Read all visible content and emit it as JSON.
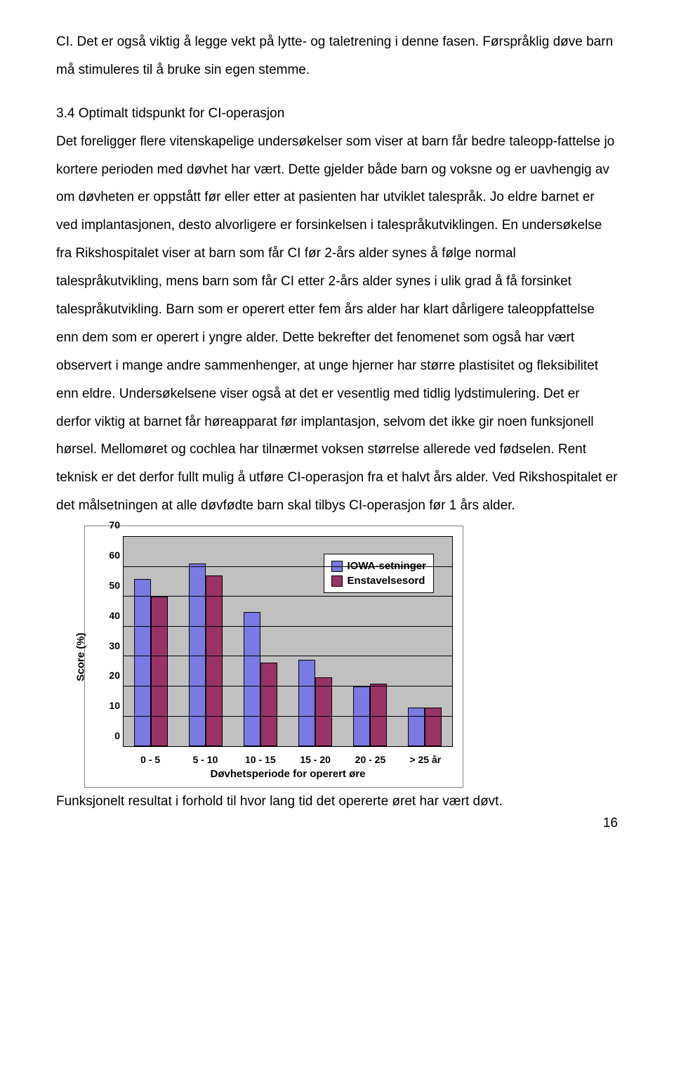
{
  "text": {
    "p1": "CI. Det er også viktig å legge vekt på lytte- og taletrening i denne fasen. Førspråklig døve barn må stimuleres til å bruke sin egen stemme.",
    "section_title": "3.4 Optimalt tidspunkt for CI-operasjon",
    "p2": "Det foreligger flere vitenskapelige undersøkelser som viser at barn får bedre taleopp-fattelse jo kortere perioden med døvhet har vært. Dette gjelder både barn og voksne og er uavhengig av om døvheten er oppstått før eller etter at pasienten har utviklet talespråk. Jo eldre barnet er ved implantasjonen, desto alvorligere er forsinkelsen i talespråkutviklingen. En undersøkelse fra Rikshospitalet viser at barn som får CI før 2-års alder synes å følge normal talespråkutvikling, mens barn som får CI etter 2-års alder synes i ulik grad å få forsinket talespråkutvikling. Barn som er operert etter fem års alder har klart dårligere taleoppfattelse enn dem som er operert i yngre alder. Dette bekrefter det fenomenet som også har vært observert i mange andre sammenhenger, at unge hjerner har større plastisitet og fleksibilitet enn eldre. Undersøkelsene viser også at det er vesentlig med tidlig lydstimulering. Det er derfor viktig at barnet får høreapparat før implantasjon, selvom det ikke gir noen funksjonell hørsel. Mellomøret og cochlea har tilnærmet voksen størrelse allerede ved fødselen. Rent teknisk er det derfor fullt mulig å utføre CI-operasjon fra et halvt års alder. Ved Rikshospitalet er det målsetningen at alle døvfødte barn skal tilbys CI-operasjon før 1 års alder.",
    "caption": "Funksjonelt resultat i forhold til hvor lang tid det opererte øret har vært døvt.",
    "pagenum": "16"
  },
  "chart": {
    "type": "bar",
    "categories": [
      "0 - 5",
      "5 - 10",
      "10 - 15",
      "15 - 20",
      "20 - 25",
      "> 25 år"
    ],
    "series": [
      {
        "name": "IOWA-setninger",
        "color": "#7b79e3",
        "values": [
          56,
          61,
          45,
          29,
          20,
          13
        ]
      },
      {
        "name": "Enstavelsesord",
        "color": "#993366",
        "values": [
          50,
          57,
          28,
          23,
          21,
          13
        ]
      }
    ],
    "ylim": [
      0,
      70
    ],
    "ytick_step": 10,
    "yticks": [
      0,
      10,
      20,
      30,
      40,
      50,
      60,
      70
    ],
    "y_label": "Score (%)",
    "x_label": "Døvhetsperiode for operert øre",
    "plot_background": "#c0c0c0",
    "grid_color": "#000000",
    "legend_labels": [
      "IOWA-setninger",
      "Enstavelsesord"
    ]
  }
}
